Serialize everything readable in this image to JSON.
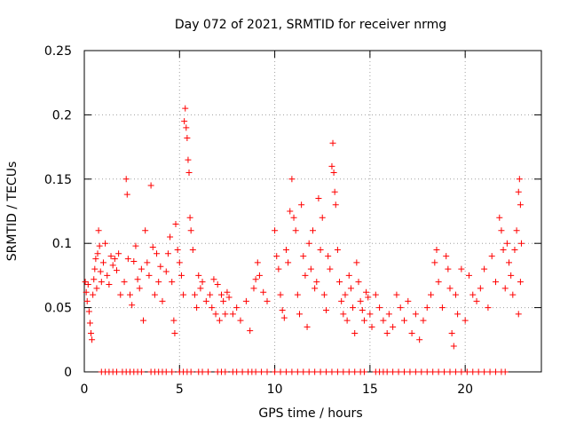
{
  "chart_data": {
    "type": "scatter",
    "title": "Day 072 of 2021, SRMTID for receiver nrmg",
    "xlabel": "GPS time / hours",
    "ylabel": "SRMTID / TECUs",
    "xlim": [
      0,
      24
    ],
    "ylim": [
      0,
      0.25
    ],
    "x_ticks": [
      0,
      5,
      10,
      15,
      20
    ],
    "x_tick_labels": [
      "0",
      "5",
      "10",
      "15",
      "20"
    ],
    "y_ticks": [
      0,
      0.05,
      0.1,
      0.15,
      0.2,
      0.25
    ],
    "y_tick_labels": [
      "0",
      "0.05",
      "0.1",
      "0.15",
      "0.2",
      "0.25"
    ],
    "grid": true,
    "marker": "+",
    "series": [
      {
        "name": "SRMTID",
        "color": "#ff0000",
        "points": [
          [
            0.05,
            0.07
          ],
          [
            0.1,
            0.062
          ],
          [
            0.15,
            0.055
          ],
          [
            0.2,
            0.068
          ],
          [
            0.25,
            0.047
          ],
          [
            0.3,
            0.038
          ],
          [
            0.35,
            0.03
          ],
          [
            0.4,
            0.025
          ],
          [
            0.45,
            0.06
          ],
          [
            0.5,
            0.072
          ],
          [
            0.55,
            0.08
          ],
          [
            0.6,
            0.088
          ],
          [
            0.65,
            0.065
          ],
          [
            0.7,
            0.092
          ],
          [
            0.75,
            0.11
          ],
          [
            0.8,
            0.098
          ],
          [
            0.85,
            0.078
          ],
          [
            0.9,
            0.07
          ],
          [
            1.0,
            0.085
          ],
          [
            1.1,
            0.1
          ],
          [
            1.2,
            0.075
          ],
          [
            1.3,
            0.068
          ],
          [
            1.4,
            0.09
          ],
          [
            1.5,
            0.083
          ],
          [
            1.6,
            0.088
          ],
          [
            1.7,
            0.079
          ],
          [
            1.8,
            0.092
          ],
          [
            1.9,
            0.06
          ],
          [
            2.1,
            0.07
          ],
          [
            2.2,
            0.15
          ],
          [
            2.25,
            0.138
          ],
          [
            2.3,
            0.088
          ],
          [
            2.4,
            0.06
          ],
          [
            2.5,
            0.052
          ],
          [
            2.6,
            0.086
          ],
          [
            2.7,
            0.098
          ],
          [
            2.8,
            0.072
          ],
          [
            2.9,
            0.065
          ],
          [
            3.0,
            0.08
          ],
          [
            3.1,
            0.04
          ],
          [
            3.2,
            0.11
          ],
          [
            3.3,
            0.085
          ],
          [
            3.4,
            0.075
          ],
          [
            3.5,
            0.145
          ],
          [
            3.6,
            0.097
          ],
          [
            3.7,
            0.06
          ],
          [
            3.8,
            0.092
          ],
          [
            3.9,
            0.07
          ],
          [
            4.0,
            0.082
          ],
          [
            4.1,
            0.055
          ],
          [
            4.3,
            0.078
          ],
          [
            4.4,
            0.092
          ],
          [
            4.5,
            0.105
          ],
          [
            4.6,
            0.07
          ],
          [
            4.7,
            0.04
          ],
          [
            4.75,
            0.03
          ],
          [
            4.8,
            0.115
          ],
          [
            4.9,
            0.095
          ],
          [
            5.0,
            0.085
          ],
          [
            5.1,
            0.075
          ],
          [
            5.2,
            0.06
          ],
          [
            5.25,
            0.195
          ],
          [
            5.3,
            0.205
          ],
          [
            5.35,
            0.19
          ],
          [
            5.4,
            0.182
          ],
          [
            5.45,
            0.165
          ],
          [
            5.5,
            0.155
          ],
          [
            5.55,
            0.12
          ],
          [
            5.6,
            0.11
          ],
          [
            5.7,
            0.095
          ],
          [
            5.8,
            0.06
          ],
          [
            5.9,
            0.05
          ],
          [
            6.0,
            0.075
          ],
          [
            6.1,
            0.065
          ],
          [
            6.2,
            0.07
          ],
          [
            6.4,
            0.055
          ],
          [
            6.6,
            0.06
          ],
          [
            6.7,
            0.05
          ],
          [
            6.8,
            0.072
          ],
          [
            6.9,
            0.045
          ],
          [
            7.0,
            0.068
          ],
          [
            7.1,
            0.04
          ],
          [
            7.2,
            0.06
          ],
          [
            7.3,
            0.055
          ],
          [
            7.4,
            0.045
          ],
          [
            7.5,
            0.062
          ],
          [
            7.6,
            0.058
          ],
          [
            7.8,
            0.045
          ],
          [
            8.0,
            0.05
          ],
          [
            8.2,
            0.04
          ],
          [
            8.5,
            0.055
          ],
          [
            8.7,
            0.032
          ],
          [
            8.9,
            0.065
          ],
          [
            9.0,
            0.072
          ],
          [
            9.1,
            0.085
          ],
          [
            9.2,
            0.075
          ],
          [
            9.4,
            0.062
          ],
          [
            9.6,
            0.055
          ],
          [
            10.0,
            0.11
          ],
          [
            10.1,
            0.09
          ],
          [
            10.2,
            0.08
          ],
          [
            10.3,
            0.06
          ],
          [
            10.4,
            0.048
          ],
          [
            10.5,
            0.042
          ],
          [
            10.6,
            0.095
          ],
          [
            10.7,
            0.085
          ],
          [
            10.8,
            0.125
          ],
          [
            10.9,
            0.15
          ],
          [
            11.0,
            0.12
          ],
          [
            11.1,
            0.11
          ],
          [
            11.2,
            0.06
          ],
          [
            11.3,
            0.045
          ],
          [
            11.4,
            0.13
          ],
          [
            11.5,
            0.09
          ],
          [
            11.6,
            0.075
          ],
          [
            11.7,
            0.035
          ],
          [
            11.8,
            0.1
          ],
          [
            11.9,
            0.08
          ],
          [
            12.0,
            0.11
          ],
          [
            12.1,
            0.065
          ],
          [
            12.2,
            0.07
          ],
          [
            12.3,
            0.135
          ],
          [
            12.4,
            0.095
          ],
          [
            12.5,
            0.12
          ],
          [
            12.6,
            0.06
          ],
          [
            12.7,
            0.048
          ],
          [
            12.8,
            0.09
          ],
          [
            12.9,
            0.08
          ],
          [
            13.0,
            0.16
          ],
          [
            13.05,
            0.178
          ],
          [
            13.1,
            0.155
          ],
          [
            13.15,
            0.14
          ],
          [
            13.2,
            0.13
          ],
          [
            13.3,
            0.095
          ],
          [
            13.4,
            0.07
          ],
          [
            13.5,
            0.055
          ],
          [
            13.6,
            0.045
          ],
          [
            13.7,
            0.06
          ],
          [
            13.8,
            0.04
          ],
          [
            13.9,
            0.075
          ],
          [
            14.0,
            0.065
          ],
          [
            14.1,
            0.05
          ],
          [
            14.2,
            0.03
          ],
          [
            14.3,
            0.085
          ],
          [
            14.4,
            0.07
          ],
          [
            14.5,
            0.055
          ],
          [
            14.6,
            0.048
          ],
          [
            14.7,
            0.04
          ],
          [
            14.8,
            0.062
          ],
          [
            14.9,
            0.058
          ],
          [
            15.0,
            0.045
          ],
          [
            15.1,
            0.035
          ],
          [
            15.3,
            0.06
          ],
          [
            15.5,
            0.05
          ],
          [
            15.7,
            0.04
          ],
          [
            15.9,
            0.03
          ],
          [
            16.0,
            0.045
          ],
          [
            16.2,
            0.035
          ],
          [
            16.4,
            0.06
          ],
          [
            16.6,
            0.05
          ],
          [
            16.8,
            0.04
          ],
          [
            17.0,
            0.055
          ],
          [
            17.2,
            0.03
          ],
          [
            17.4,
            0.045
          ],
          [
            17.6,
            0.025
          ],
          [
            17.8,
            0.04
          ],
          [
            18.0,
            0.05
          ],
          [
            18.2,
            0.06
          ],
          [
            18.4,
            0.085
          ],
          [
            18.5,
            0.095
          ],
          [
            18.6,
            0.07
          ],
          [
            18.8,
            0.05
          ],
          [
            19.0,
            0.09
          ],
          [
            19.1,
            0.08
          ],
          [
            19.2,
            0.065
          ],
          [
            19.3,
            0.03
          ],
          [
            19.4,
            0.02
          ],
          [
            19.5,
            0.06
          ],
          [
            19.6,
            0.045
          ],
          [
            19.8,
            0.08
          ],
          [
            20.0,
            0.04
          ],
          [
            20.2,
            0.075
          ],
          [
            20.4,
            0.06
          ],
          [
            20.6,
            0.055
          ],
          [
            20.8,
            0.065
          ],
          [
            21.0,
            0.08
          ],
          [
            21.2,
            0.05
          ],
          [
            21.4,
            0.09
          ],
          [
            21.6,
            0.07
          ],
          [
            21.8,
            0.12
          ],
          [
            21.9,
            0.11
          ],
          [
            22.0,
            0.095
          ],
          [
            22.1,
            0.065
          ],
          [
            22.2,
            0.1
          ],
          [
            22.3,
            0.085
          ],
          [
            22.4,
            0.075
          ],
          [
            22.5,
            0.06
          ],
          [
            22.6,
            0.095
          ],
          [
            22.7,
            0.11
          ],
          [
            22.8,
            0.14
          ],
          [
            22.85,
            0.15
          ],
          [
            22.9,
            0.13
          ],
          [
            22.95,
            0.1
          ],
          [
            22.8,
            0.045
          ],
          [
            22.9,
            0.07
          ],
          [
            0.9,
            0
          ],
          [
            1.1,
            0
          ],
          [
            1.3,
            0
          ],
          [
            1.5,
            0
          ],
          [
            1.7,
            0
          ],
          [
            2.0,
            0
          ],
          [
            2.2,
            0
          ],
          [
            2.4,
            0
          ],
          [
            2.6,
            0
          ],
          [
            2.8,
            0
          ],
          [
            3.0,
            0
          ],
          [
            3.5,
            0
          ],
          [
            3.7,
            0
          ],
          [
            3.9,
            0
          ],
          [
            4.1,
            0
          ],
          [
            4.3,
            0
          ],
          [
            4.6,
            0
          ],
          [
            5.0,
            0
          ],
          [
            5.2,
            0
          ],
          [
            5.4,
            0
          ],
          [
            5.6,
            0
          ],
          [
            6.0,
            0
          ],
          [
            6.2,
            0
          ],
          [
            6.5,
            0
          ],
          [
            7.0,
            0
          ],
          [
            7.2,
            0
          ],
          [
            7.4,
            0
          ],
          [
            7.8,
            0
          ],
          [
            8.0,
            0
          ],
          [
            8.3,
            0
          ],
          [
            8.6,
            0
          ],
          [
            8.8,
            0
          ],
          [
            9.0,
            0
          ],
          [
            9.3,
            0
          ],
          [
            9.6,
            0
          ],
          [
            10.0,
            0
          ],
          [
            10.3,
            0
          ],
          [
            10.6,
            0
          ],
          [
            10.9,
            0
          ],
          [
            11.2,
            0
          ],
          [
            11.5,
            0
          ],
          [
            11.8,
            0
          ],
          [
            12.1,
            0
          ],
          [
            12.4,
            0
          ],
          [
            12.7,
            0
          ],
          [
            13.0,
            0
          ],
          [
            13.3,
            0
          ],
          [
            13.6,
            0
          ],
          [
            13.9,
            0
          ],
          [
            14.2,
            0
          ],
          [
            14.5,
            0
          ],
          [
            14.7,
            0
          ],
          [
            15.3,
            0
          ],
          [
            15.5,
            0
          ],
          [
            15.7,
            0
          ],
          [
            15.9,
            0
          ],
          [
            16.2,
            0
          ],
          [
            16.5,
            0
          ],
          [
            16.8,
            0
          ],
          [
            17.1,
            0
          ],
          [
            17.4,
            0
          ],
          [
            17.7,
            0
          ],
          [
            18.0,
            0
          ],
          [
            18.3,
            0
          ],
          [
            18.6,
            0
          ],
          [
            18.9,
            0
          ],
          [
            19.2,
            0
          ],
          [
            19.5,
            0
          ],
          [
            19.8,
            0
          ],
          [
            20.1,
            0
          ],
          [
            20.4,
            0
          ],
          [
            20.7,
            0
          ],
          [
            21.0,
            0
          ],
          [
            21.3,
            0
          ],
          [
            21.6,
            0
          ],
          [
            21.9,
            0
          ],
          [
            22.1,
            0
          ]
        ]
      }
    ]
  }
}
